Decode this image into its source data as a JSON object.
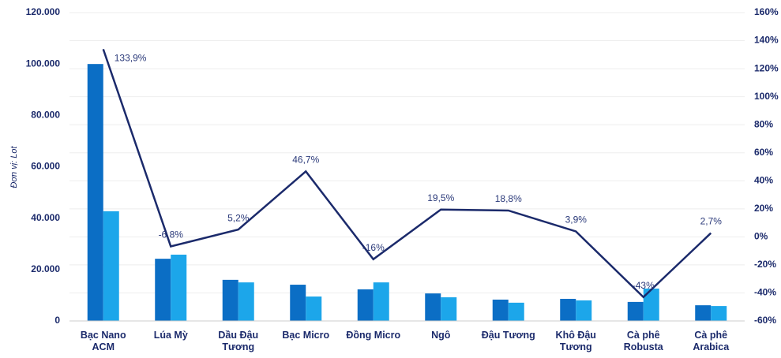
{
  "chart_data": {
    "type": "bar",
    "y_label": "Đơn vị: Lot",
    "categories": [
      "Bạc Nano ACM",
      "Lúa Mỳ",
      "Dầu Đậu Tương",
      "Bạc Micro",
      "Đồng Micro",
      "Ngô",
      "Đậu Tương",
      "Khô Đậu Tương",
      "Cà phê Robusta",
      "Cà phê Arabica"
    ],
    "series": [
      {
        "color": "#0b6ec5",
        "values": [
          100000,
          24200,
          16000,
          14100,
          12300,
          10700,
          8300,
          8600,
          7400,
          6100
        ]
      },
      {
        "color": "#1ca6ea",
        "values": [
          42700,
          25800,
          15000,
          9500,
          15000,
          9200,
          7100,
          8000,
          12600,
          5800
        ]
      },
      {
        "type": "line",
        "axis": "y2",
        "color": "#1b2a6b",
        "values": [
          133.9,
          -6.8,
          5.2,
          46.7,
          -16,
          19.5,
          18.8,
          3.9,
          -43,
          2.7
        ],
        "value_labels": [
          "133,9%",
          "-6,8%",
          "5,2%",
          "46,7%",
          "-16%",
          "19,5%",
          "18,8%",
          "3,9%",
          "-43%",
          "2,7%"
        ]
      }
    ],
    "ylim": [
      0,
      120000
    ],
    "yticks": [
      {
        "value": 0,
        "label": "0"
      },
      {
        "value": 20000,
        "label": "20.000"
      },
      {
        "value": 40000,
        "label": "40.000"
      },
      {
        "value": 60000,
        "label": "60.000"
      },
      {
        "value": 80000,
        "label": "80.000"
      },
      {
        "value": 100000,
        "label": "100.000"
      },
      {
        "value": 120000,
        "label": "120.000"
      }
    ],
    "y2lim": [
      -60,
      160
    ],
    "y2ticks": [
      {
        "value": -60,
        "label": "-60%"
      },
      {
        "value": -40,
        "label": "-40%"
      },
      {
        "value": -20,
        "label": "-20%"
      },
      {
        "value": 0,
        "label": "0%"
      },
      {
        "value": 20,
        "label": "20%"
      },
      {
        "value": 40,
        "label": "40%"
      },
      {
        "value": 60,
        "label": "60%"
      },
      {
        "value": 80,
        "label": "80%"
      },
      {
        "value": 100,
        "label": "100%"
      },
      {
        "value": 120,
        "label": "120%"
      },
      {
        "value": 140,
        "label": "140%"
      },
      {
        "value": 160,
        "label": "160%"
      }
    ],
    "grid": true
  }
}
